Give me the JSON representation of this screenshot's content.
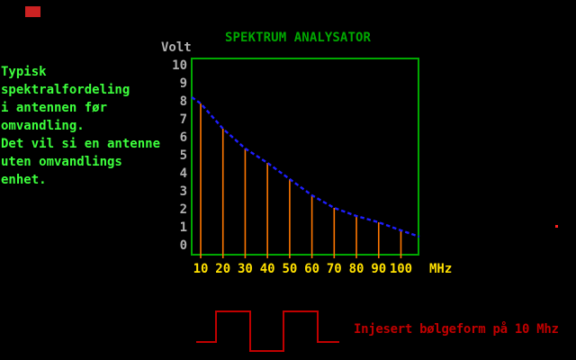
{
  "screen": {
    "background": "#000000"
  },
  "cursor": {
    "color": "#cc2222"
  },
  "intro": {
    "color": "#3dff3d",
    "lines": [
      "Typisk",
      "spektralfordeling",
      "i antennen før",
      "omvandling.",
      "Det vil si en antenne",
      "uten omvandlings",
      "enhet."
    ]
  },
  "chart": {
    "title": "SPEKTRUM ANALYSATOR",
    "title_color": "#00a800",
    "border_color": "#00a800",
    "ylabel": "Volt",
    "xunit": "MHz",
    "axis_text_color": "#b0b0b0",
    "x_tick_color": "#ffe000",
    "y_ticks": [
      "10",
      "9",
      "8",
      "7",
      "6",
      "5",
      "4",
      "3",
      "2",
      "1",
      "0"
    ],
    "x_ticks": [
      "10",
      "20",
      "30",
      "40",
      "50",
      "60",
      "70",
      "80",
      "90",
      "100"
    ]
  },
  "chart_data": {
    "type": "line",
    "title": "SPEKTRUM ANALYSATOR",
    "xlabel": "MHz",
    "ylabel": "Volt",
    "x": [
      10,
      20,
      30,
      40,
      50,
      60,
      70,
      80,
      90,
      100
    ],
    "ylim": [
      0,
      10
    ],
    "xlim": [
      10,
      100
    ],
    "grid": false,
    "legend": "none",
    "series": [
      {
        "name": "spektral-envelope",
        "type": "line",
        "style": "dotted",
        "color": "#1e1eff",
        "values": [
          8.0,
          6.6,
          5.5,
          4.7,
          3.8,
          2.9,
          2.2,
          1.75,
          1.4,
          0.95
        ],
        "edge_values": {
          "left": 8.35,
          "right": 0.6
        }
      },
      {
        "name": "spektrallinjer",
        "type": "vertical-lines",
        "color": "#ff7700",
        "values": [
          8.0,
          6.6,
          5.5,
          4.7,
          3.8,
          2.9,
          2.2,
          1.75,
          1.4,
          0.95
        ]
      }
    ]
  },
  "waveform": {
    "shape": "square-wave",
    "color": "#c00000",
    "caption": "Injesert bølgeform på 10 Mhz"
  },
  "artifacts": {
    "stray_pixel_color": "#ff2020"
  }
}
